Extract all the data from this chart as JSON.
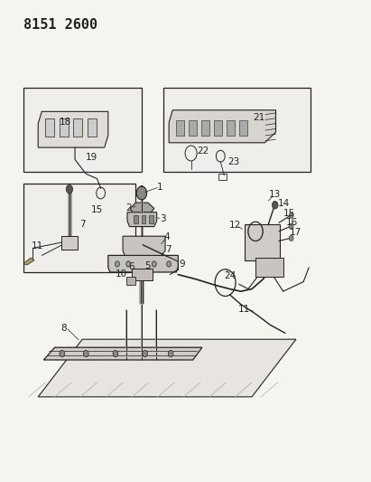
{
  "title": "8151 2600",
  "bg_color": "#f5f5f0",
  "line_color": "#222222",
  "box_bg": "#f0eeea",
  "font_size_title": 11,
  "font_size_labels": 7.5
}
